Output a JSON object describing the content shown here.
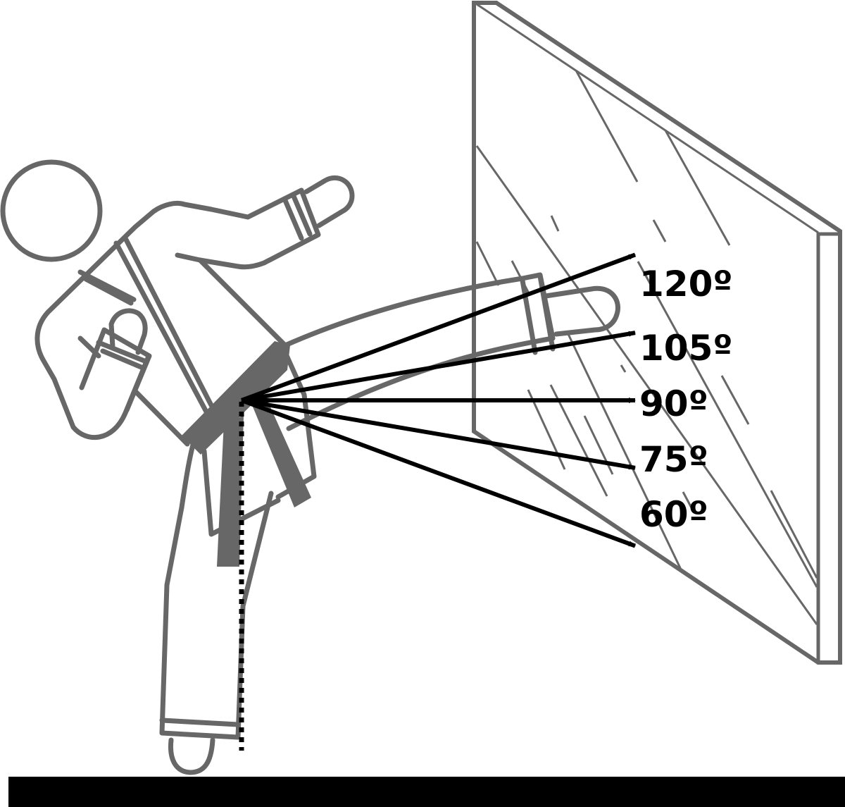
{
  "colors": {
    "figure": "#676767",
    "arrow": "#000000",
    "floor": "#000000",
    "background": "#ffffff"
  },
  "angles": [
    {
      "label": "120º",
      "degrees": 120
    },
    {
      "label": "105º",
      "degrees": 105
    },
    {
      "label": "90º",
      "degrees": 90
    },
    {
      "label": "75º",
      "degrees": 75
    },
    {
      "label": "60º",
      "degrees": 60
    }
  ]
}
